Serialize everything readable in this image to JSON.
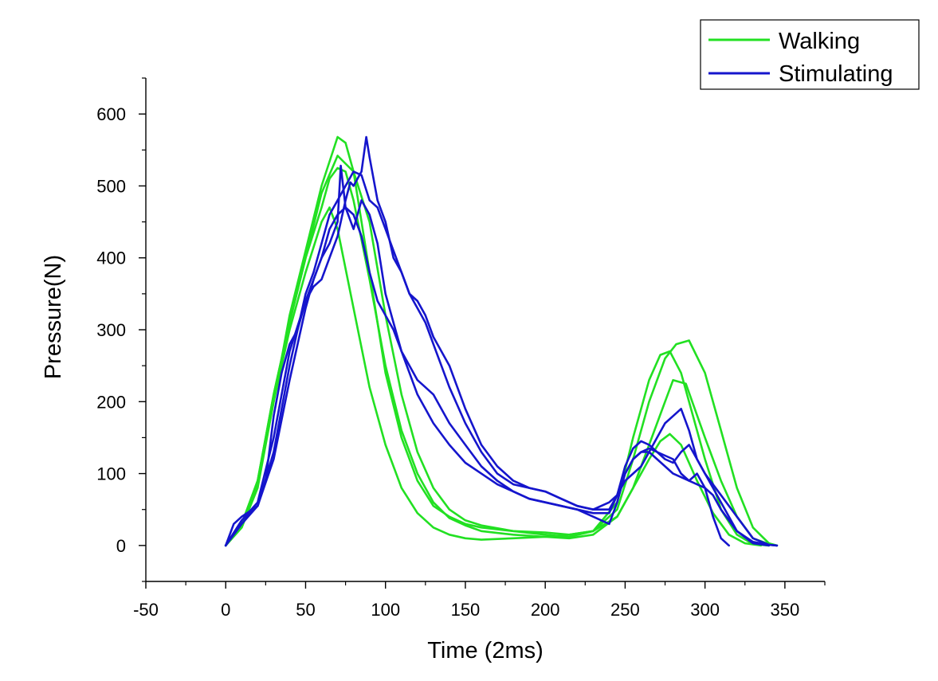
{
  "chart_data": {
    "type": "line",
    "title": "",
    "xlabel": "Time (2ms)",
    "ylabel": "Pressure(N)",
    "xlim": [
      -50,
      375
    ],
    "ylim": [
      -50,
      650
    ],
    "xticks": [
      -50,
      0,
      50,
      100,
      150,
      200,
      250,
      300,
      350
    ],
    "yticks": [
      0,
      100,
      200,
      300,
      400,
      500,
      600
    ],
    "xtick_labels": [
      "-50",
      "0",
      "50",
      "100",
      "150",
      "200",
      "250",
      "300",
      "350"
    ],
    "ytick_labels": [
      "0",
      "100",
      "200",
      "300",
      "400",
      "500",
      "600"
    ],
    "grid": false,
    "legend": {
      "position": "top-right",
      "entries": [
        {
          "label": "Walking",
          "color": "#22e022"
        },
        {
          "label": "Stimulating",
          "color": "#1515cc"
        }
      ]
    },
    "series": [
      {
        "name": "Walking",
        "group": "Walking",
        "color": "#22e022",
        "x": [
          0,
          10,
          20,
          30,
          40,
          50,
          60,
          70,
          75,
          80,
          90,
          100,
          110,
          120,
          130,
          140,
          150,
          160,
          180,
          200,
          215,
          230,
          245,
          255,
          265,
          275,
          280,
          288,
          300,
          310,
          320,
          330,
          340,
          345
        ],
        "y": [
          0,
          25,
          80,
          200,
          320,
          410,
          500,
          568,
          560,
          520,
          380,
          240,
          150,
          90,
          55,
          40,
          30,
          25,
          20,
          18,
          15,
          20,
          40,
          80,
          140,
          200,
          230,
          225,
          150,
          90,
          40,
          10,
          2,
          0
        ]
      },
      {
        "name": "Walking",
        "group": "Walking",
        "color": "#22e022",
        "x": [
          0,
          10,
          20,
          30,
          40,
          50,
          60,
          70,
          80,
          90,
          100,
          110,
          120,
          130,
          140,
          150,
          160,
          180,
          200,
          215,
          230,
          245,
          255,
          265,
          275,
          282,
          290,
          300,
          310,
          320,
          330,
          340,
          345
        ],
        "y": [
          0,
          30,
          90,
          210,
          310,
          400,
          490,
          542,
          520,
          450,
          320,
          210,
          130,
          80,
          50,
          35,
          28,
          20,
          15,
          12,
          20,
          50,
          120,
          200,
          260,
          280,
          285,
          240,
          160,
          80,
          25,
          3,
          0
        ]
      },
      {
        "name": "Walking",
        "group": "Walking",
        "color": "#22e022",
        "x": [
          0,
          10,
          20,
          30,
          40,
          50,
          60,
          65,
          70,
          80,
          90,
          100,
          110,
          120,
          130,
          140,
          150,
          160,
          180,
          200,
          215,
          230,
          245,
          255,
          265,
          272,
          278,
          285,
          300,
          310,
          320,
          330,
          340
        ],
        "y": [
          0,
          25,
          85,
          200,
          300,
          380,
          450,
          470,
          440,
          330,
          220,
          140,
          80,
          45,
          25,
          15,
          10,
          8,
          10,
          12,
          15,
          20,
          60,
          150,
          230,
          265,
          270,
          240,
          120,
          50,
          15,
          2,
          0
        ]
      },
      {
        "name": "Walking",
        "group": "Walking",
        "color": "#22e022",
        "x": [
          0,
          10,
          20,
          30,
          40,
          50,
          60,
          65,
          70,
          75,
          80,
          90,
          100,
          110,
          120,
          130,
          140,
          150,
          160,
          180,
          200,
          215,
          230,
          245,
          255,
          265,
          272,
          278,
          285,
          295,
          305,
          315,
          325,
          335
        ],
        "y": [
          0,
          30,
          90,
          210,
          310,
          400,
          470,
          510,
          525,
          520,
          480,
          370,
          250,
          160,
          100,
          60,
          38,
          28,
          20,
          15,
          12,
          10,
          15,
          40,
          80,
          120,
          145,
          155,
          140,
          90,
          45,
          15,
          3,
          0
        ]
      },
      {
        "name": "Stimulating",
        "group": "Stimulating",
        "color": "#1515cc",
        "x": [
          0,
          5,
          10,
          20,
          25,
          30,
          35,
          40,
          45,
          50,
          55,
          60,
          65,
          70,
          75,
          78,
          80,
          85,
          88,
          90,
          95,
          100,
          105,
          110,
          115,
          120,
          125,
          130,
          140,
          150,
          160,
          170,
          180,
          190,
          200,
          210,
          220,
          230,
          240,
          245,
          250,
          255,
          260,
          265,
          270,
          275,
          280,
          285,
          290,
          295,
          300,
          305,
          310,
          315,
          320,
          330,
          340,
          345
        ],
        "y": [
          0,
          30,
          40,
          55,
          90,
          180,
          240,
          280,
          300,
          340,
          360,
          370,
          400,
          430,
          480,
          505,
          500,
          520,
          568,
          540,
          480,
          450,
          400,
          380,
          350,
          340,
          320,
          290,
          250,
          190,
          140,
          110,
          90,
          80,
          75,
          65,
          55,
          50,
          60,
          70,
          90,
          100,
          110,
          130,
          150,
          170,
          180,
          190,
          160,
          120,
          100,
          80,
          60,
          40,
          20,
          5,
          1,
          0
        ]
      },
      {
        "name": "Stimulating",
        "group": "Stimulating",
        "color": "#1515cc",
        "x": [
          0,
          10,
          20,
          30,
          40,
          50,
          55,
          60,
          65,
          70,
          75,
          80,
          85,
          90,
          95,
          100,
          105,
          110,
          115,
          120,
          125,
          130,
          140,
          150,
          160,
          170,
          180,
          190,
          200,
          210,
          220,
          230,
          240,
          245,
          250,
          255,
          260,
          265,
          270,
          275,
          280,
          285,
          290,
          295,
          300,
          310,
          320,
          330,
          340,
          345
        ],
        "y": [
          0,
          35,
          55,
          130,
          250,
          350,
          380,
          420,
          460,
          480,
          500,
          520,
          515,
          480,
          470,
          440,
          410,
          380,
          350,
          330,
          310,
          280,
          220,
          170,
          130,
          100,
          85,
          80,
          75,
          65,
          55,
          50,
          50,
          70,
          110,
          135,
          145,
          140,
          130,
          120,
          115,
          130,
          140,
          120,
          100,
          70,
          40,
          10,
          1,
          0
        ]
      },
      {
        "name": "Stimulating",
        "group": "Stimulating",
        "color": "#1515cc",
        "x": [
          0,
          10,
          20,
          30,
          40,
          50,
          55,
          60,
          65,
          70,
          72,
          75,
          80,
          85,
          90,
          95,
          100,
          105,
          110,
          115,
          120,
          125,
          130,
          140,
          150,
          160,
          170,
          180,
          190,
          200,
          210,
          220,
          230,
          240,
          245,
          250,
          255,
          260,
          265,
          270,
          275,
          280,
          285,
          290,
          295,
          300,
          305,
          310,
          320,
          330,
          340
        ],
        "y": [
          0,
          35,
          60,
          150,
          270,
          340,
          370,
          400,
          420,
          450,
          528,
          470,
          440,
          480,
          460,
          420,
          350,
          310,
          270,
          250,
          230,
          220,
          210,
          170,
          140,
          110,
          90,
          75,
          65,
          60,
          55,
          50,
          40,
          30,
          60,
          100,
          120,
          130,
          135,
          130,
          125,
          120,
          100,
          90,
          85,
          80,
          70,
          50,
          20,
          3,
          0
        ]
      },
      {
        "name": "Stimulating",
        "group": "Stimulating",
        "color": "#1515cc",
        "x": [
          0,
          10,
          20,
          30,
          40,
          50,
          55,
          60,
          65,
          70,
          75,
          80,
          85,
          90,
          95,
          100,
          105,
          110,
          115,
          120,
          125,
          130,
          140,
          150,
          160,
          170,
          180,
          190,
          200,
          210,
          220,
          230,
          240,
          245,
          250,
          255,
          260,
          265,
          270,
          275,
          280,
          285,
          290,
          295,
          300,
          305,
          310,
          315
        ],
        "y": [
          0,
          30,
          55,
          120,
          230,
          330,
          370,
          400,
          440,
          460,
          470,
          460,
          430,
          380,
          340,
          320,
          300,
          270,
          240,
          210,
          190,
          170,
          140,
          115,
          100,
          85,
          75,
          65,
          60,
          55,
          50,
          45,
          45,
          70,
          100,
          120,
          130,
          130,
          120,
          110,
          100,
          95,
          90,
          100,
          80,
          40,
          10,
          0
        ]
      }
    ]
  }
}
